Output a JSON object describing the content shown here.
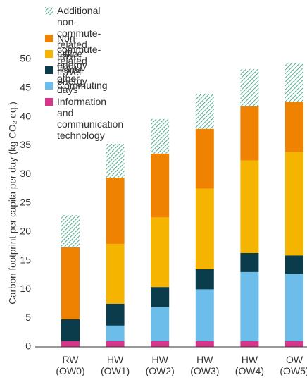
{
  "chart_data": {
    "type": "stacked_bar",
    "y_label": "Carbon footprint per capita per day (kg CO₂ eq.)",
    "categories": [
      "RW\n(OW0)",
      "HW\n(OW1)",
      "HW\n(OW2)",
      "HW\n(OW3)",
      "HW\n(OW4)",
      "OW\n(OW5)"
    ],
    "series": [
      {
        "name": "Information and\ncommunication\ntechnology",
        "color": "#d8348a",
        "values": [
          1.0,
          1.0,
          1.0,
          1.0,
          1.0,
          1.0
        ]
      },
      {
        "name": "Commuting",
        "color": "#6cbde9",
        "values": [
          0,
          2.7,
          5.9,
          9.0,
          12.0,
          11.7
        ]
      },
      {
        "name": "Home energy",
        "color": "#0b3c4c",
        "values": [
          3.8,
          3.8,
          3.5,
          3.5,
          3.3,
          3.2
        ]
      },
      {
        "name": "Office energy",
        "color": "#f5b400",
        "values": [
          0,
          10.4,
          12.1,
          14.0,
          16.1,
          18.0
        ]
      },
      {
        "name": "Non-commute-related travel",
        "color": "#ef8200",
        "values": [
          12.5,
          11.5,
          11.1,
          10.4,
          9.4,
          8.7
        ]
      },
      {
        "name": "Additional non-commute-related\ntravel from other days",
        "color": "#2e9a78",
        "hatch": true,
        "values": [
          5.6,
          5.9,
          6.0,
          6.1,
          6.5,
          6.8
        ]
      }
    ],
    "ylim": [
      0,
      50
    ],
    "yticks": [
      0,
      5,
      10,
      15,
      20,
      25,
      30,
      35,
      40,
      45,
      50
    ],
    "grid": false,
    "legend": "upper left"
  }
}
